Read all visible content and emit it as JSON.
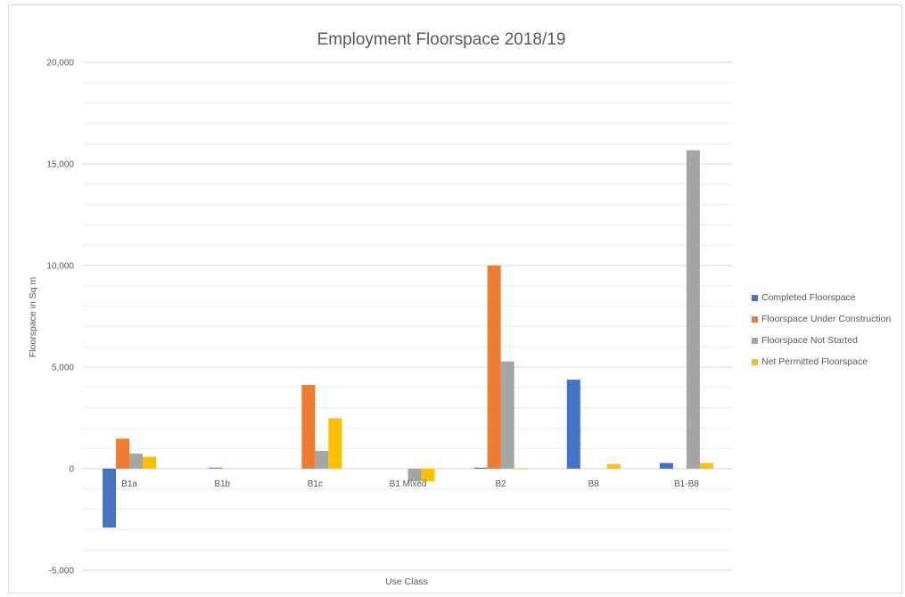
{
  "chart_data": {
    "type": "bar",
    "title": "Employment Floorspace 2018/19",
    "xlabel": "Use Class",
    "ylabel": "Floorspace in Sq m",
    "ylim": [
      -5000,
      20000
    ],
    "yticks": [
      -5000,
      0,
      5000,
      10000,
      15000,
      20000
    ],
    "ytick_labels": [
      "-5,000",
      "0",
      "5,000",
      "10,000",
      "15,000",
      "20,000"
    ],
    "grid": true,
    "legend_position": "right",
    "categories": [
      "B1a",
      "B1b",
      "B1c",
      "B1 Mixed",
      "B2",
      "B8",
      "B1-B8"
    ],
    "series": [
      {
        "name": "Completed Floorspace",
        "color": "#4472c4",
        "values": [
          -2900,
          0,
          0,
          0,
          50,
          4380,
          280
        ]
      },
      {
        "name": "Floorspace Under Construction",
        "color": "#ed7d31",
        "values": [
          1480,
          60,
          4120,
          0,
          10000,
          0,
          0
        ]
      },
      {
        "name": "Floorspace Not Started",
        "color": "#a5a5a5",
        "values": [
          740,
          0,
          880,
          -620,
          5280,
          0,
          15680
        ]
      },
      {
        "name": "Net Permitted Floorspace",
        "color": "#ffc000",
        "values": [
          590,
          0,
          2480,
          -620,
          20,
          230,
          280
        ]
      }
    ]
  }
}
